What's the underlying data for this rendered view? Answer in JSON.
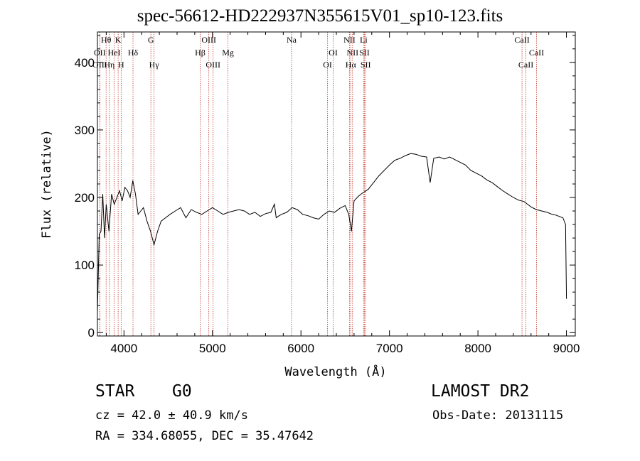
{
  "title": "spec-56612-HD222937N355615V01_sp10-123.fits",
  "info": {
    "object_type": "STAR",
    "object_class": "G0",
    "survey": "LAMOST DR2",
    "cz": "cz = 42.0 ± 40.9 km/s",
    "obs_date": "Obs-Date: 20131115",
    "radec": "RA = 334.68055, DEC =  35.47642"
  },
  "chart_data": {
    "type": "line",
    "title": "spec-56612-HD222937N355615V01_sp10-123.fits",
    "xlabel": "Wavelength (Å)",
    "ylabel": "Flux (relative)",
    "xlim": [
      3700,
      9100
    ],
    "ylim": [
      -5,
      445
    ],
    "xticks": [
      4000,
      5000,
      6000,
      7000,
      8000,
      9000
    ],
    "yticks": [
      0,
      100,
      200,
      300,
      400
    ],
    "grid": false,
    "spectrum": {
      "x": [
        3700,
        3720,
        3740,
        3760,
        3780,
        3800,
        3830,
        3860,
        3890,
        3920,
        3950,
        3980,
        4010,
        4040,
        4070,
        4100,
        4130,
        4160,
        4190,
        4220,
        4260,
        4300,
        4340,
        4380,
        4420,
        4470,
        4520,
        4580,
        4640,
        4700,
        4760,
        4820,
        4880,
        4940,
        5000,
        5060,
        5120,
        5180,
        5240,
        5300,
        5360,
        5420,
        5480,
        5540,
        5600,
        5660,
        5700,
        5720,
        5740,
        5780,
        5840,
        5900,
        5960,
        6020,
        6080,
        6140,
        6200,
        6260,
        6320,
        6380,
        6440,
        6500,
        6540,
        6570,
        6600,
        6650,
        6700,
        6760,
        6820,
        6880,
        6940,
        7000,
        7060,
        7120,
        7180,
        7240,
        7300,
        7360,
        7420,
        7460,
        7500,
        7560,
        7620,
        7680,
        7740,
        7800,
        7860,
        7920,
        7980,
        8040,
        8100,
        8160,
        8220,
        8280,
        8340,
        8400,
        8460,
        8520,
        8560,
        8600,
        8660,
        8720,
        8780,
        8840,
        8880,
        8920,
        8960,
        8990,
        9000
      ],
      "y": [
        30,
        145,
        150,
        205,
        140,
        190,
        150,
        205,
        190,
        200,
        210,
        195,
        215,
        210,
        200,
        225,
        205,
        175,
        180,
        185,
        165,
        150,
        130,
        150,
        165,
        170,
        175,
        180,
        185,
        170,
        182,
        178,
        175,
        180,
        185,
        180,
        175,
        178,
        180,
        182,
        180,
        175,
        178,
        172,
        176,
        178,
        190,
        170,
        172,
        175,
        178,
        185,
        182,
        175,
        173,
        170,
        168,
        175,
        180,
        178,
        184,
        188,
        175,
        150,
        195,
        202,
        207,
        212,
        222,
        232,
        240,
        248,
        255,
        258,
        262,
        265,
        264,
        261,
        260,
        222,
        258,
        260,
        257,
        260,
        256,
        252,
        248,
        240,
        236,
        232,
        226,
        222,
        216,
        210,
        205,
        200,
        196,
        194,
        190,
        186,
        182,
        180,
        178,
        175,
        174,
        172,
        170,
        160,
        50
      ]
    },
    "lines": [
      {
        "label": "Hθ",
        "x": 3798,
        "row": 1
      },
      {
        "label": "OII",
        "x": 3727,
        "row": 2
      },
      {
        "label": "OIII",
        "x": 3727,
        "row": 3
      },
      {
        "label": "Hη",
        "x": 3835,
        "row": 3
      },
      {
        "label": "HeI",
        "x": 3889,
        "row": 2
      },
      {
        "label": "K",
        "x": 3934,
        "row": 1
      },
      {
        "label": "H",
        "x": 3968,
        "row": 3
      },
      {
        "label": "Hδ",
        "x": 4102,
        "row": 2
      },
      {
        "label": "G",
        "x": 4304,
        "row": 1
      },
      {
        "label": "Hγ",
        "x": 4340,
        "row": 3
      },
      {
        "label": "Hβ",
        "x": 4861,
        "row": 2
      },
      {
        "label": "OIII",
        "x": 4959,
        "row": 1
      },
      {
        "label": "OIII",
        "x": 5007,
        "row": 3
      },
      {
        "label": "Mg",
        "x": 5175,
        "row": 2
      },
      {
        "label": "Na",
        "x": 5894,
        "row": 1
      },
      {
        "label": "OI",
        "x": 6300,
        "row": 3
      },
      {
        "label": "OI",
        "x": 6364,
        "row": 2
      },
      {
        "label": "NII",
        "x": 6548,
        "row": 1
      },
      {
        "label": "NII",
        "x": 6583,
        "row": 2
      },
      {
        "label": "Hα",
        "x": 6563,
        "row": 3
      },
      {
        "label": "Li",
        "x": 6708,
        "row": 1
      },
      {
        "label": "SII",
        "x": 6717,
        "row": 2
      },
      {
        "label": "SII",
        "x": 6731,
        "row": 3
      },
      {
        "label": "CaII",
        "x": 8498,
        "row": 1
      },
      {
        "label": "CaII",
        "x": 8542,
        "row": 3
      },
      {
        "label": "CaII",
        "x": 8662,
        "row": 2
      }
    ]
  }
}
